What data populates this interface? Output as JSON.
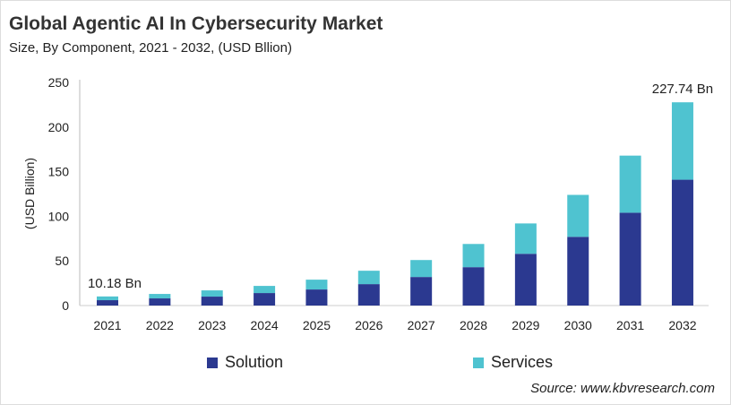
{
  "chart_data": {
    "type": "bar",
    "stacked": true,
    "title": "Global Agentic AI In Cybersecurity Market",
    "subtitle": "Size, By Component, 2021 - 2032, (USD Bllion)",
    "xlabel": "",
    "ylabel": "(USD Billion)",
    "ylim": [
      0,
      250
    ],
    "yticks": [
      0,
      50,
      100,
      150,
      200,
      250
    ],
    "grid": false,
    "legend_position": "bottom",
    "categories": [
      "2021",
      "2022",
      "2023",
      "2024",
      "2025",
      "2026",
      "2027",
      "2028",
      "2029",
      "2030",
      "2031",
      "2032"
    ],
    "series": [
      {
        "name": "Solution",
        "color": "#2b3990",
        "values": [
          6,
          8,
          10,
          14,
          18,
          24,
          32,
          43,
          58,
          77,
          104,
          141
        ]
      },
      {
        "name": "Services",
        "color": "#4fc3d0",
        "values": [
          4.18,
          5,
          7,
          8,
          11,
          15,
          19,
          26,
          34,
          47,
          64,
          86.74
        ]
      }
    ],
    "annotations": [
      {
        "category": "2021",
        "text": "10.18 Bn"
      },
      {
        "category": "2032",
        "text": "227.74 Bn"
      }
    ],
    "source": "Source: www.kbvresearch.com"
  }
}
